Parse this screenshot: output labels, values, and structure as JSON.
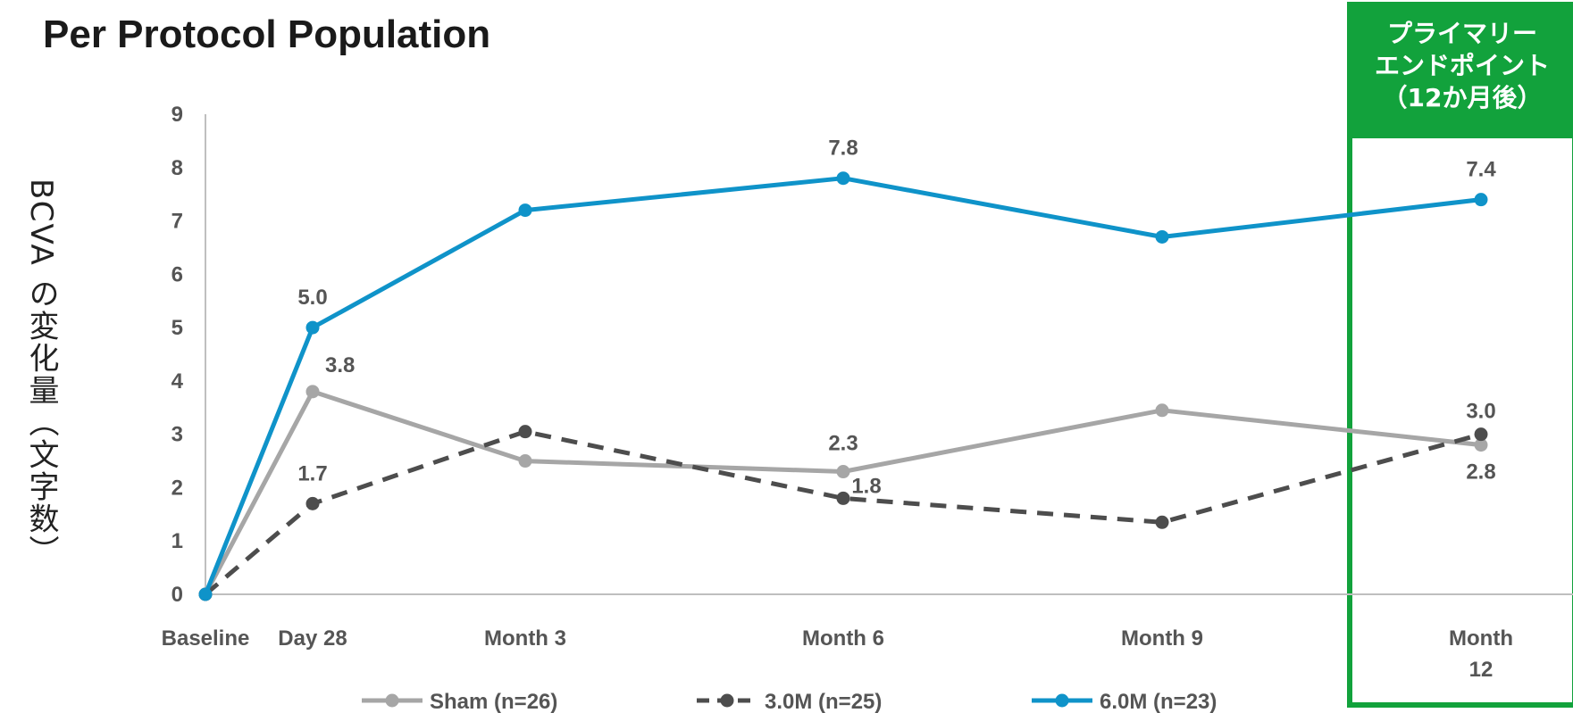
{
  "chart_data": {
    "type": "line",
    "title": "Per Protocol Population",
    "ylabel": "BCVA の変化量（文字数）",
    "xlabel": "",
    "categories": [
      "Baseline",
      "Day 28",
      "Month 3",
      "Month 6",
      "Month 9",
      "Month 12"
    ],
    "x_days": [
      0,
      28,
      90,
      180,
      270,
      360
    ],
    "ylim": [
      0,
      9
    ],
    "yticks": [
      "0",
      "1",
      "2",
      "3",
      "4",
      "5",
      "6",
      "7",
      "8",
      "9"
    ],
    "grid": false,
    "legend_position": "bottom",
    "series": [
      {
        "name": "Sham (n=26)",
        "values": [
          0,
          3.8,
          2.5,
          2.3,
          3.45,
          2.8
        ],
        "labels": [
          "",
          "3.8",
          "",
          "2.3",
          "",
          "2.8"
        ],
        "color": "#a6a6a6",
        "dash": "solid"
      },
      {
        "name": "3.0M (n=25)",
        "values": [
          0,
          1.7,
          3.05,
          1.8,
          1.35,
          3.0
        ],
        "labels": [
          "",
          "1.7",
          "",
          "1.8",
          "",
          "3.0"
        ],
        "color": "#4d4d4d",
        "dash": "dashed"
      },
      {
        "name": "6.0M (n=23)",
        "values": [
          0,
          5.0,
          7.2,
          7.8,
          6.7,
          7.4
        ],
        "labels": [
          "",
          "5.0",
          "",
          "7.8",
          "",
          "7.4"
        ],
        "color": "#0f93c9",
        "dash": "solid"
      }
    ],
    "annotation": {
      "lines": [
        "プライマリー",
        "エンドポイント",
        "（12か月後）"
      ],
      "color": "#12a23c"
    }
  }
}
